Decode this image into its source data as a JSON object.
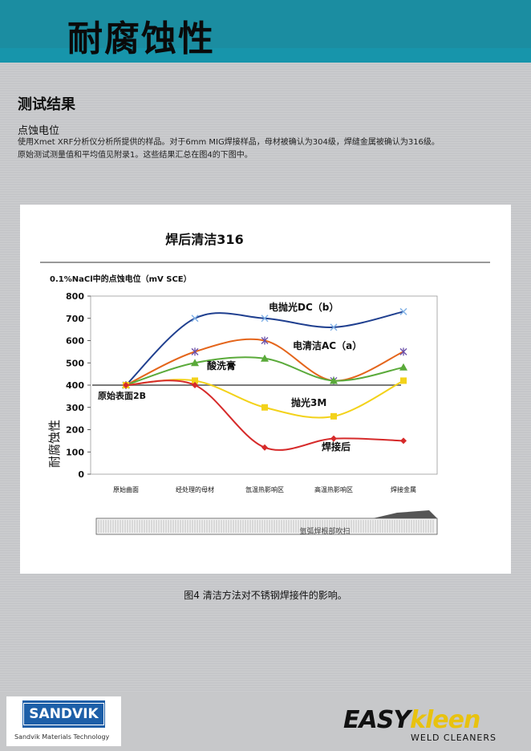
{
  "header": {
    "title": "耐腐蚀性"
  },
  "section": {
    "title": "测试结果",
    "subtitle": "点蚀电位",
    "body_line1": "使用Xmet XRF分析仪分析所提供的样品。对于6mm MIG焊接样品，母材被确认为304级，焊缝金属被确认为316级。",
    "body_line2": "原始测试测量值和平均值见附录1。这些结果汇总在图4的下图中。"
  },
  "chart_data": {
    "type": "line",
    "title": "焊后清洁316",
    "subtitle": "0.1%NaCl中的点蚀电位（mV SCE）",
    "ylabel": "耐腐蚀性",
    "ylim": [
      0,
      800
    ],
    "yticks": [
      "0",
      "100",
      "200",
      "300",
      "400",
      "500",
      "600",
      "700",
      "800"
    ],
    "categories": [
      "原始曲面",
      "经处理的母材",
      "氙温热影响区",
      "高温热影响区",
      "焊接金属"
    ],
    "series": [
      {
        "name": "电抛光DC（b）",
        "color": "#1f3f8f",
        "marker": "x",
        "values": [
          400,
          700,
          700,
          660,
          730
        ]
      },
      {
        "name": "电清洁AC（a）",
        "color": "#e4651b",
        "marker": "star",
        "values": [
          400,
          550,
          600,
          420,
          550
        ]
      },
      {
        "name": "酸洗膏",
        "color": "#5aaa3a",
        "marker": "triangle",
        "values": [
          400,
          500,
          520,
          420,
          480
        ]
      },
      {
        "name": "抛光3M",
        "color": "#f3d21a",
        "marker": "square",
        "values": [
          400,
          420,
          300,
          260,
          420
        ]
      },
      {
        "name": "焊接后",
        "color": "#d62a2a",
        "marker": "diamond",
        "values": [
          400,
          400,
          120,
          160,
          150
        ]
      }
    ],
    "reference": {
      "name": "原始表面2B",
      "value": 400,
      "color": "#7a7a7a"
    },
    "bottom_label": "氩弧焊根部吹扫"
  },
  "caption": "图4  清洁方法对不锈钢焊接件的影响。",
  "footer": {
    "sandvik_logo": "SANDVIK",
    "sandvik_sub": "Sandvik Materials Technology",
    "brand_easy": "EASY",
    "brand_kleen": "kleen",
    "brand_tagline": "WELD CLEANERS"
  }
}
